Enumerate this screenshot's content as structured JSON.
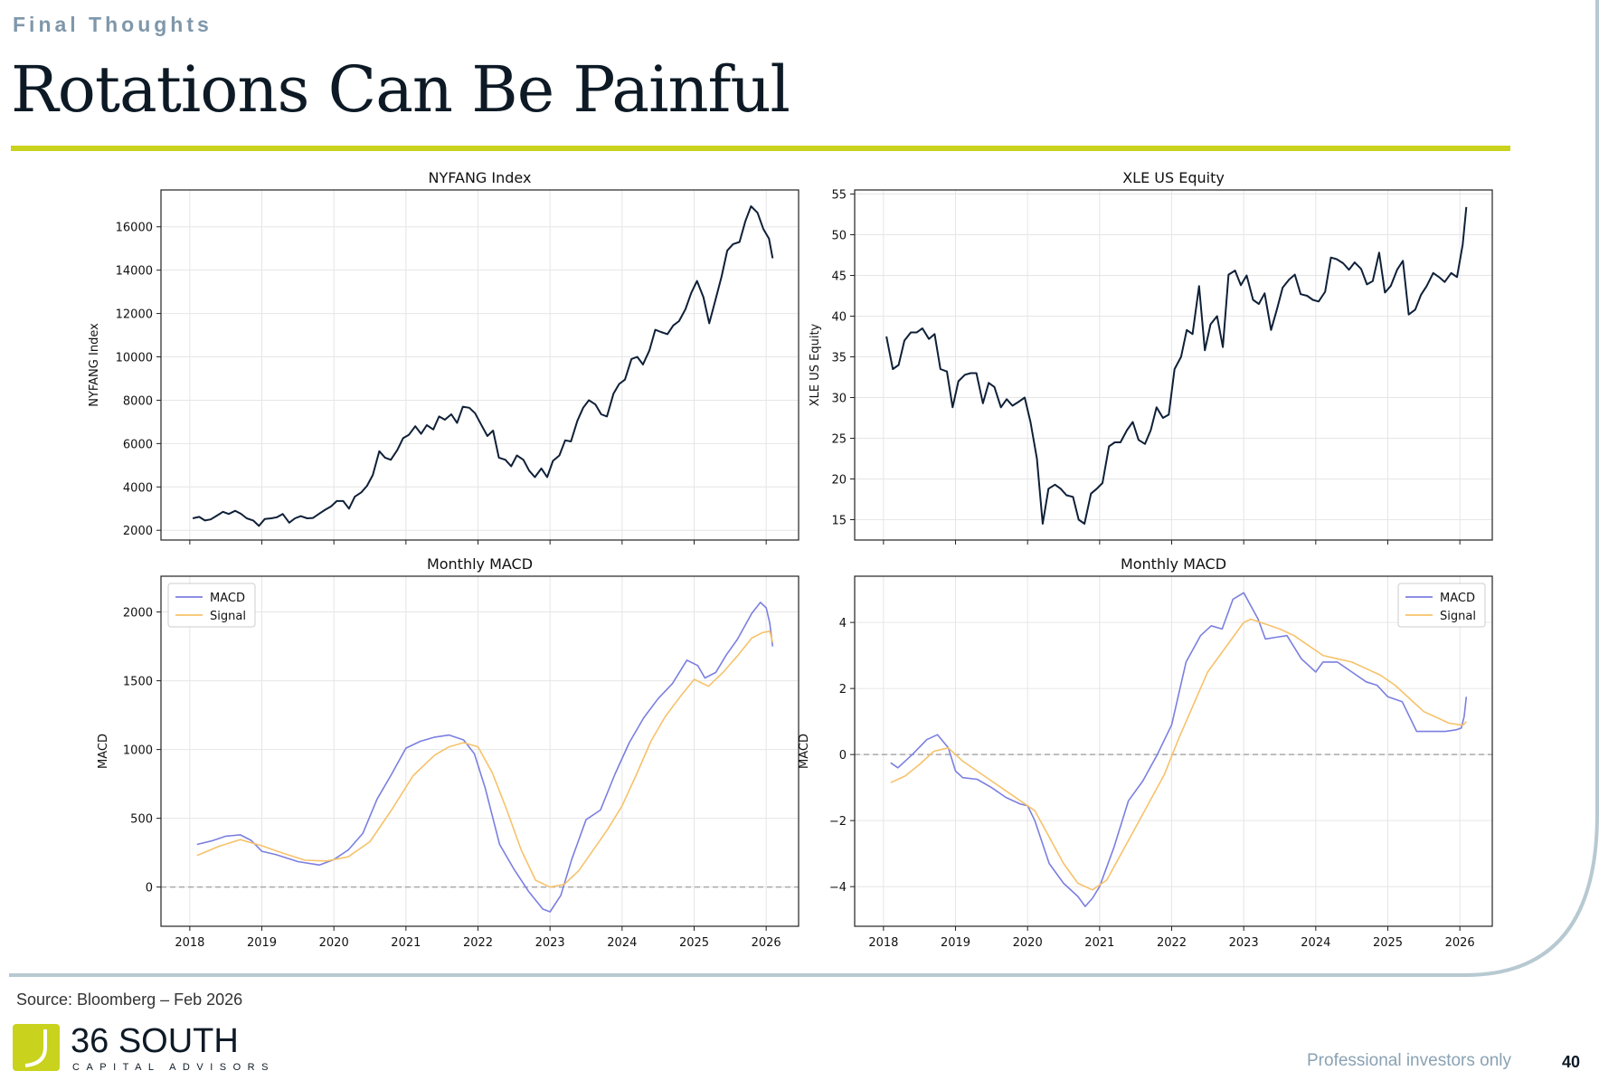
{
  "header": {
    "section": "Final Thoughts",
    "title": "Rotations Can Be Painful"
  },
  "footer": {
    "source": "Source: Bloomberg – Feb 2026",
    "logo_name": "36 SOUTH",
    "logo_sub": "CAPITAL ADVISORS",
    "note": "Professional investors only",
    "page": "40"
  },
  "colors": {
    "price": "#0f2038",
    "macd": "#7b7fe0",
    "signal": "#f6c26b",
    "accent": "#c9d21c",
    "frame": "#b7c9d1"
  },
  "chart_data": [
    {
      "id": "nyfang_price",
      "type": "line",
      "title": "NYFANG Index",
      "xlabel": "",
      "ylabel": "NYFANG Index",
      "xlim": [
        2017.6,
        2026.45
      ],
      "ylim": [
        1550,
        17700
      ],
      "xticks": [
        2018,
        2019,
        2020,
        2021,
        2022,
        2023,
        2024,
        2025,
        2026
      ],
      "show_xtick_labels": false,
      "yticks": [
        2000,
        4000,
        6000,
        8000,
        10000,
        12000,
        14000,
        16000
      ],
      "ytick_labels": [
        "2000",
        "4000",
        "6000",
        "8000",
        "10000",
        "12000",
        "14000",
        "16000"
      ],
      "grid": true,
      "series": [
        {
          "name": "NYFANG Index",
          "color": "#0f2038",
          "x": [
            2018.04,
            2018.13,
            2018.21,
            2018.29,
            2018.38,
            2018.46,
            2018.54,
            2018.63,
            2018.71,
            2018.79,
            2018.88,
            2018.96,
            2019.04,
            2019.13,
            2019.21,
            2019.29,
            2019.38,
            2019.46,
            2019.54,
            2019.63,
            2019.71,
            2019.79,
            2019.88,
            2019.96,
            2020.04,
            2020.13,
            2020.21,
            2020.29,
            2020.38,
            2020.46,
            2020.54,
            2020.63,
            2020.71,
            2020.79,
            2020.88,
            2020.96,
            2021.04,
            2021.13,
            2021.21,
            2021.29,
            2021.38,
            2021.46,
            2021.54,
            2021.63,
            2021.71,
            2021.79,
            2021.88,
            2021.96,
            2022.04,
            2022.13,
            2022.21,
            2022.29,
            2022.38,
            2022.46,
            2022.54,
            2022.63,
            2022.71,
            2022.79,
            2022.88,
            2022.96,
            2023.04,
            2023.13,
            2023.21,
            2023.29,
            2023.38,
            2023.46,
            2023.54,
            2023.63,
            2023.71,
            2023.79,
            2023.88,
            2023.96,
            2024.04,
            2024.13,
            2024.21,
            2024.29,
            2024.38,
            2024.46,
            2024.54,
            2024.63,
            2024.71,
            2024.79,
            2024.88,
            2024.96,
            2025.04,
            2025.13,
            2025.21,
            2025.29,
            2025.38,
            2025.46,
            2025.54,
            2025.63,
            2025.71,
            2025.79,
            2025.88,
            2025.96,
            2026.04,
            2026.09
          ],
          "values": [
            2550,
            2620,
            2450,
            2500,
            2680,
            2850,
            2750,
            2900,
            2760,
            2550,
            2450,
            2200,
            2520,
            2550,
            2600,
            2750,
            2350,
            2550,
            2650,
            2550,
            2570,
            2750,
            2950,
            3100,
            3350,
            3350,
            3000,
            3550,
            3750,
            4050,
            4550,
            5650,
            5350,
            5250,
            5700,
            6250,
            6400,
            6800,
            6450,
            6850,
            6650,
            7250,
            7100,
            7350,
            6950,
            7700,
            7650,
            7400,
            6900,
            6350,
            6600,
            5350,
            5250,
            4950,
            5450,
            5250,
            4750,
            4450,
            4850,
            4450,
            5200,
            5450,
            6150,
            6100,
            7050,
            7650,
            8000,
            7800,
            7350,
            7250,
            8300,
            8750,
            8950,
            9900,
            10000,
            9650,
            10300,
            11250,
            11150,
            11050,
            11450,
            11650,
            12200,
            12950,
            13500,
            12750,
            11550,
            12550,
            13700,
            14900,
            15200,
            15300,
            16250,
            16950,
            16650,
            15900,
            15450,
            14550
          ]
        }
      ]
    },
    {
      "id": "xle_price",
      "type": "line",
      "title": "XLE US Equity",
      "xlabel": "",
      "ylabel": "XLE US Equity",
      "xlim": [
        2017.6,
        2026.45
      ],
      "ylim": [
        12.5,
        55.5
      ],
      "xticks": [
        2018,
        2019,
        2020,
        2021,
        2022,
        2023,
        2024,
        2025,
        2026
      ],
      "show_xtick_labels": false,
      "yticks": [
        15,
        20,
        25,
        30,
        35,
        40,
        45,
        50,
        55
      ],
      "ytick_labels": [
        "15",
        "20",
        "25",
        "30",
        "35",
        "40",
        "45",
        "50",
        "55"
      ],
      "grid": true,
      "series": [
        {
          "name": "XLE US Equity",
          "color": "#0f2038",
          "x": [
            2018.04,
            2018.13,
            2018.21,
            2018.29,
            2018.38,
            2018.46,
            2018.54,
            2018.63,
            2018.71,
            2018.79,
            2018.88,
            2018.96,
            2019.04,
            2019.13,
            2019.21,
            2019.29,
            2019.38,
            2019.46,
            2019.54,
            2019.63,
            2019.71,
            2019.79,
            2019.88,
            2019.96,
            2020.04,
            2020.13,
            2020.21,
            2020.29,
            2020.38,
            2020.46,
            2020.54,
            2020.63,
            2020.71,
            2020.79,
            2020.88,
            2020.96,
            2021.04,
            2021.13,
            2021.21,
            2021.29,
            2021.38,
            2021.46,
            2021.54,
            2021.63,
            2021.71,
            2021.79,
            2021.88,
            2021.96,
            2022.04,
            2022.13,
            2022.21,
            2022.29,
            2022.38,
            2022.46,
            2022.54,
            2022.63,
            2022.71,
            2022.79,
            2022.88,
            2022.96,
            2023.04,
            2023.13,
            2023.21,
            2023.29,
            2023.38,
            2023.46,
            2023.54,
            2023.63,
            2023.71,
            2023.79,
            2023.88,
            2023.96,
            2024.04,
            2024.13,
            2024.21,
            2024.29,
            2024.38,
            2024.46,
            2024.54,
            2024.63,
            2024.71,
            2024.79,
            2024.88,
            2024.96,
            2025.04,
            2025.13,
            2025.21,
            2025.29,
            2025.38,
            2025.46,
            2025.54,
            2025.63,
            2025.71,
            2025.79,
            2025.88,
            2025.96,
            2026.04,
            2026.09
          ],
          "values": [
            37.5,
            33.5,
            34.0,
            37.0,
            38.0,
            38.0,
            38.5,
            37.2,
            37.8,
            33.5,
            33.2,
            28.8,
            32.0,
            32.8,
            33.0,
            33.0,
            29.3,
            31.8,
            31.3,
            28.8,
            29.8,
            29.0,
            29.5,
            30.0,
            27.0,
            22.5,
            14.5,
            18.8,
            19.3,
            18.8,
            18.0,
            17.8,
            15.0,
            14.5,
            18.2,
            18.8,
            19.5,
            24.0,
            24.5,
            24.5,
            26.0,
            27.0,
            24.8,
            24.3,
            26.0,
            28.8,
            27.5,
            27.9,
            33.5,
            35.0,
            38.3,
            37.8,
            43.7,
            35.8,
            39.0,
            40.0,
            36.2,
            45.1,
            45.6,
            43.8,
            45.0,
            42.0,
            41.5,
            42.8,
            38.3,
            40.8,
            43.5,
            44.5,
            45.1,
            42.7,
            42.5,
            42.0,
            41.8,
            43.0,
            47.2,
            47.0,
            46.5,
            45.7,
            46.6,
            45.8,
            43.9,
            44.3,
            47.8,
            42.9,
            43.7,
            45.7,
            46.8,
            40.2,
            40.8,
            42.6,
            43.7,
            45.3,
            44.8,
            44.2,
            45.3,
            44.8,
            48.8,
            53.4
          ]
        }
      ]
    },
    {
      "id": "nyfang_macd",
      "type": "line",
      "title": "Monthly MACD",
      "xlabel": "",
      "ylabel": "MACD",
      "xlim": [
        2017.6,
        2026.45
      ],
      "ylim": [
        -285,
        2260
      ],
      "xticks": [
        2018,
        2019,
        2020,
        2021,
        2022,
        2023,
        2024,
        2025,
        2026
      ],
      "xtick_labels": [
        "2018",
        "2019",
        "2020",
        "2021",
        "2022",
        "2023",
        "2024",
        "2025",
        "2026"
      ],
      "show_xtick_labels": true,
      "yticks": [
        0,
        500,
        1000,
        1500,
        2000
      ],
      "ytick_labels": [
        "0",
        "500",
        "1000",
        "1500",
        "2000"
      ],
      "zero_line": true,
      "legend": "upper-left",
      "grid": true,
      "legend_labels": [
        "MACD",
        "Signal"
      ],
      "series": [
        {
          "name": "MACD",
          "color": "#7b7fe0",
          "x": [
            2018.1,
            2018.3,
            2018.5,
            2018.7,
            2018.85,
            2019.0,
            2019.2,
            2019.5,
            2019.8,
            2020.0,
            2020.2,
            2020.4,
            2020.6,
            2020.8,
            2021.0,
            2021.2,
            2021.4,
            2021.6,
            2021.8,
            2021.95,
            2022.1,
            2022.3,
            2022.5,
            2022.7,
            2022.9,
            2023.0,
            2023.15,
            2023.3,
            2023.5,
            2023.7,
            2023.9,
            2024.1,
            2024.3,
            2024.5,
            2024.7,
            2024.9,
            2025.05,
            2025.15,
            2025.3,
            2025.45,
            2025.6,
            2025.8,
            2025.92,
            2026.0,
            2026.05,
            2026.09
          ],
          "values": [
            310,
            335,
            370,
            380,
            340,
            260,
            235,
            185,
            160,
            200,
            270,
            390,
            640,
            820,
            1010,
            1060,
            1090,
            1105,
            1070,
            970,
            720,
            310,
            130,
            -30,
            -160,
            -180,
            -60,
            200,
            490,
            560,
            820,
            1050,
            1230,
            1370,
            1480,
            1650,
            1610,
            1520,
            1560,
            1690,
            1800,
            1990,
            2070,
            2030,
            1920,
            1750
          ]
        },
        {
          "name": "Signal",
          "color": "#f6c26b",
          "x": [
            2018.1,
            2018.4,
            2018.7,
            2019.0,
            2019.3,
            2019.6,
            2019.9,
            2020.2,
            2020.5,
            2020.8,
            2021.1,
            2021.4,
            2021.6,
            2021.8,
            2022.0,
            2022.2,
            2022.4,
            2022.6,
            2022.8,
            2023.0,
            2023.2,
            2023.4,
            2023.6,
            2023.8,
            2024.0,
            2024.2,
            2024.4,
            2024.6,
            2024.8,
            2025.0,
            2025.2,
            2025.4,
            2025.6,
            2025.8,
            2025.95,
            2026.05,
            2026.09
          ],
          "values": [
            230,
            295,
            345,
            300,
            245,
            195,
            190,
            220,
            330,
            560,
            810,
            960,
            1020,
            1050,
            1020,
            830,
            560,
            270,
            50,
            0,
            20,
            120,
            270,
            420,
            590,
            820,
            1060,
            1240,
            1380,
            1510,
            1460,
            1560,
            1680,
            1810,
            1850,
            1860,
            1780
          ]
        }
      ]
    },
    {
      "id": "xle_macd",
      "type": "line",
      "title": "Monthly MACD",
      "xlabel": "",
      "ylabel": "MACD",
      "xlim": [
        2017.6,
        2026.45
      ],
      "ylim": [
        -5.2,
        5.4
      ],
      "xticks": [
        2018,
        2019,
        2020,
        2021,
        2022,
        2023,
        2024,
        2025,
        2026
      ],
      "xtick_labels": [
        "2018",
        "2019",
        "2020",
        "2021",
        "2022",
        "2023",
        "2024",
        "2025",
        "2026"
      ],
      "show_xtick_labels": true,
      "yticks": [
        -4,
        -2,
        0,
        2,
        4
      ],
      "ytick_labels": [
        "−4",
        "−2",
        "0",
        "2",
        "4"
      ],
      "zero_line": true,
      "legend": "upper-right",
      "grid": true,
      "legend_labels": [
        "MACD",
        "Signal"
      ],
      "series": [
        {
          "name": "MACD",
          "color": "#7b7fe0",
          "x": [
            2018.1,
            2018.2,
            2018.4,
            2018.6,
            2018.75,
            2018.9,
            2019.0,
            2019.1,
            2019.3,
            2019.5,
            2019.7,
            2019.9,
            2020.0,
            2020.1,
            2020.3,
            2020.5,
            2020.7,
            2020.8,
            2020.9,
            2021.0,
            2021.2,
            2021.4,
            2021.6,
            2021.8,
            2022.0,
            2022.2,
            2022.4,
            2022.55,
            2022.7,
            2022.85,
            2023.0,
            2023.1,
            2023.2,
            2023.3,
            2023.45,
            2023.6,
            2023.8,
            2024.0,
            2024.1,
            2024.3,
            2024.5,
            2024.7,
            2024.85,
            2025.0,
            2025.2,
            2025.4,
            2025.6,
            2025.8,
            2025.95,
            2026.02,
            2026.06,
            2026.09
          ],
          "values": [
            -0.25,
            -0.4,
            0.0,
            0.45,
            0.6,
            0.2,
            -0.5,
            -0.7,
            -0.75,
            -1.0,
            -1.3,
            -1.5,
            -1.55,
            -2.0,
            -3.3,
            -3.9,
            -4.3,
            -4.6,
            -4.35,
            -4.0,
            -2.8,
            -1.4,
            -0.8,
            0.0,
            0.9,
            2.8,
            3.6,
            3.9,
            3.8,
            4.7,
            4.9,
            4.5,
            4.1,
            3.5,
            3.55,
            3.6,
            2.9,
            2.5,
            2.8,
            2.8,
            2.5,
            2.2,
            2.1,
            1.75,
            1.6,
            0.7,
            0.7,
            0.7,
            0.75,
            0.8,
            1.15,
            1.75
          ]
        },
        {
          "name": "Signal",
          "color": "#f6c26b",
          "x": [
            2018.1,
            2018.3,
            2018.5,
            2018.7,
            2018.9,
            2019.1,
            2019.3,
            2019.5,
            2019.7,
            2019.9,
            2020.1,
            2020.3,
            2020.5,
            2020.7,
            2020.9,
            2021.1,
            2021.3,
            2021.5,
            2021.7,
            2021.9,
            2022.1,
            2022.3,
            2022.5,
            2022.7,
            2022.9,
            2023.0,
            2023.1,
            2023.3,
            2023.5,
            2023.7,
            2023.9,
            2024.1,
            2024.3,
            2024.5,
            2024.7,
            2024.9,
            2025.1,
            2025.3,
            2025.5,
            2025.7,
            2025.85,
            2026.0,
            2026.05,
            2026.09
          ],
          "values": [
            -0.85,
            -0.65,
            -0.3,
            0.1,
            0.2,
            -0.2,
            -0.5,
            -0.8,
            -1.1,
            -1.4,
            -1.7,
            -2.5,
            -3.3,
            -3.9,
            -4.1,
            -3.8,
            -3.0,
            -2.2,
            -1.4,
            -0.6,
            0.5,
            1.5,
            2.5,
            3.1,
            3.7,
            4.0,
            4.1,
            3.95,
            3.8,
            3.6,
            3.3,
            3.0,
            2.9,
            2.8,
            2.6,
            2.4,
            2.1,
            1.7,
            1.3,
            1.1,
            0.95,
            0.9,
            0.9,
            1.0
          ]
        }
      ]
    }
  ]
}
